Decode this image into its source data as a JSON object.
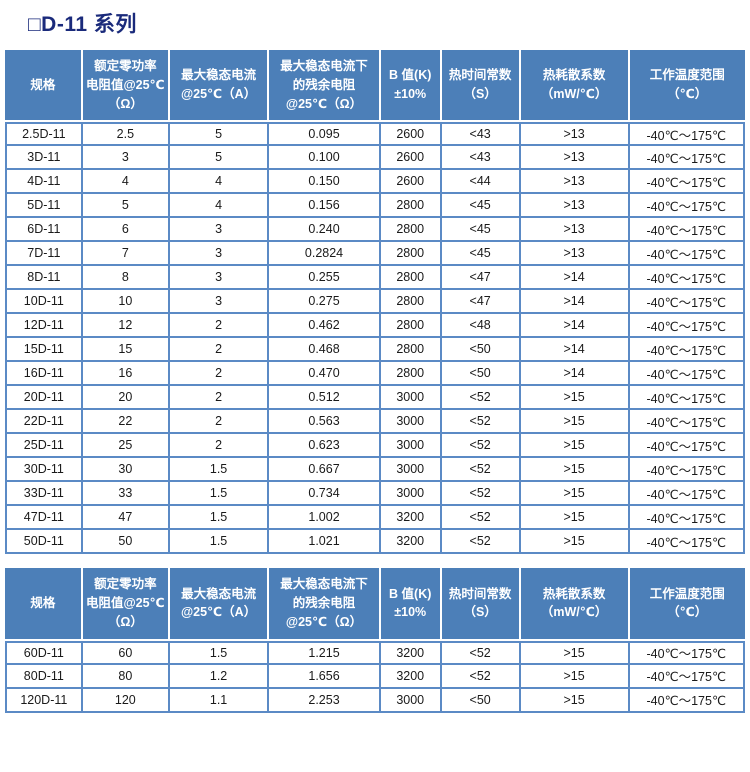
{
  "page": {
    "title": "□D-11 系列"
  },
  "colors": {
    "header_bg": "#4c7fb8",
    "header_text": "#ffffff",
    "cell_border": "#5b8ac5",
    "title_color": "#1a2a7b"
  },
  "columns": [
    "规格",
    "额定零功率\n电阻值@25℃\n（Ω）",
    "最大稳态电流\n@25℃（A）",
    "最大稳态电流下\n的残余电阻\n@25℃（Ω）",
    "B 值(K)\n±10%",
    "热时间常数\n（S）",
    "热耗散系数\n（mW/℃）",
    "工作温度范围\n（℃）"
  ],
  "tables": [
    {
      "name": "d11-series-main",
      "rows": [
        [
          "2.5D-11",
          "2.5",
          "5",
          "0.095",
          "2600",
          "<43",
          ">13",
          "-40℃～175℃"
        ],
        [
          "3D-11",
          "3",
          "5",
          "0.100",
          "2600",
          "<43",
          ">13",
          "-40℃～175℃"
        ],
        [
          "4D-11",
          "4",
          "4",
          "0.150",
          "2600",
          "<44",
          ">13",
          "-40℃～175℃"
        ],
        [
          "5D-11",
          "5",
          "4",
          "0.156",
          "2800",
          "<45",
          ">13",
          "-40℃～175℃"
        ],
        [
          "6D-11",
          "6",
          "3",
          "0.240",
          "2800",
          "<45",
          ">13",
          "-40℃～175℃"
        ],
        [
          "7D-11",
          "7",
          "3",
          "0.2824",
          "2800",
          "<45",
          ">13",
          "-40℃～175℃"
        ],
        [
          "8D-11",
          "8",
          "3",
          "0.255",
          "2800",
          "<47",
          ">14",
          "-40℃～175℃"
        ],
        [
          "10D-11",
          "10",
          "3",
          "0.275",
          "2800",
          "<47",
          ">14",
          "-40℃～175℃"
        ],
        [
          "12D-11",
          "12",
          "2",
          "0.462",
          "2800",
          "<48",
          ">14",
          "-40℃～175℃"
        ],
        [
          "15D-11",
          "15",
          "2",
          "0.468",
          "2800",
          "<50",
          ">14",
          "-40℃～175℃"
        ],
        [
          "16D-11",
          "16",
          "2",
          "0.470",
          "2800",
          "<50",
          ">14",
          "-40℃～175℃"
        ],
        [
          "20D-11",
          "20",
          "2",
          "0.512",
          "3000",
          "<52",
          ">15",
          "-40℃～175℃"
        ],
        [
          "22D-11",
          "22",
          "2",
          "0.563",
          "3000",
          "<52",
          ">15",
          "-40℃～175℃"
        ],
        [
          "25D-11",
          "25",
          "2",
          "0.623",
          "3000",
          "<52",
          ">15",
          "-40℃～175℃"
        ],
        [
          "30D-11",
          "30",
          "1.5",
          "0.667",
          "3000",
          "<52",
          ">15",
          "-40℃～175℃"
        ],
        [
          "33D-11",
          "33",
          "1.5",
          "0.734",
          "3000",
          "<52",
          ">15",
          "-40℃～175℃"
        ],
        [
          "47D-11",
          "47",
          "1.5",
          "1.002",
          "3200",
          "<52",
          ">15",
          "-40℃～175℃"
        ],
        [
          "50D-11",
          "50",
          "1.5",
          "1.021",
          "3200",
          "<52",
          ">15",
          "-40℃～175℃"
        ]
      ]
    },
    {
      "name": "d11-series-extended",
      "rows": [
        [
          "60D-11",
          "60",
          "1.5",
          "1.215",
          "3200",
          "<52",
          ">15",
          "-40℃～175℃"
        ],
        [
          "80D-11",
          "80",
          "1.2",
          "1.656",
          "3200",
          "<52",
          ">15",
          "-40℃～175℃"
        ],
        [
          "120D-11",
          "120",
          "1.1",
          "2.253",
          "3000",
          "<50",
          ">15",
          "-40℃～175℃"
        ]
      ]
    }
  ]
}
